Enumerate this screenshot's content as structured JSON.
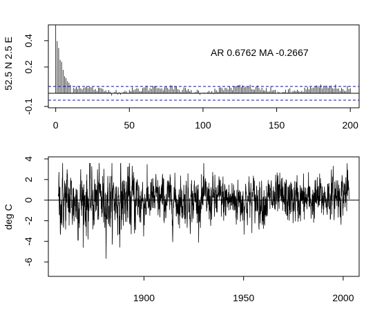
{
  "chart_data": [
    {
      "type": "bar",
      "ylabel": "52.5 N 2.5 E",
      "xlabel": "",
      "annotation": "AR 0.6762  MA -0.2667",
      "xlim": [
        -5,
        206
      ],
      "ylim": [
        -0.11,
        0.52
      ],
      "x_ticks": [
        0,
        50,
        100,
        150,
        200
      ],
      "x_tick_labels": [
        "0",
        "50",
        "100",
        "150",
        "200"
      ],
      "y_ticks": [
        -0.1,
        0.2,
        0.4
      ],
      "y_tick_labels": [
        "-0.1",
        "0.2",
        "0.4"
      ],
      "confidence_bounds": [
        0.052,
        -0.052
      ],
      "confidence_color": "#0000ff",
      "bar_color": "#000000",
      "lags": [
        0,
        200
      ],
      "acf_shape": {
        "initial": 0.5,
        "decay": 0.6762,
        "ma": -0.2667,
        "floor": 0.03
      },
      "grid": false
    },
    {
      "type": "line",
      "ylabel": "deg C",
      "xlabel": "",
      "xlim": [
        1852,
        2008
      ],
      "ylim": [
        -7.4,
        4.2
      ],
      "x_ticks": [
        1900,
        1950,
        2000
      ],
      "x_tick_labels": [
        "1900",
        "1950",
        "2000"
      ],
      "y_ticks": [
        4,
        2,
        0,
        -2,
        -4,
        -6
      ],
      "y_tick_labels": [
        "4",
        "2",
        "0",
        "-2",
        "-4",
        "-6"
      ],
      "x_range": [
        1857,
        2003
      ],
      "line_color": "#000000",
      "zero_line": 0,
      "grid": false
    }
  ]
}
